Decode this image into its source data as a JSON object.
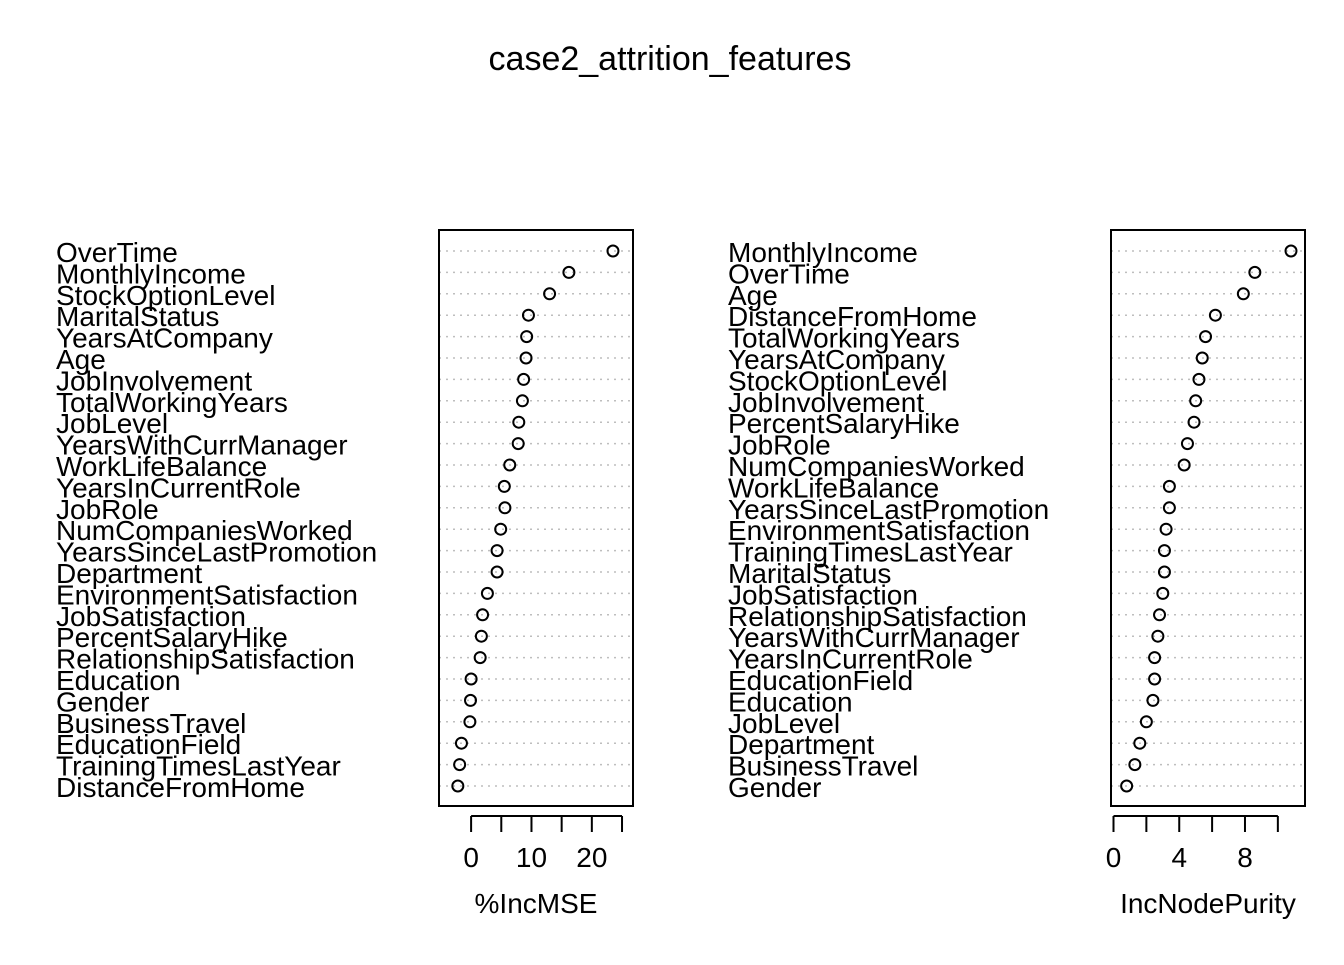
{
  "title": "case2_attrition_features",
  "chart_data": [
    {
      "type": "scatter",
      "xlabel": "%IncMSE",
      "xlim": [
        -3,
        24.5
      ],
      "xticks": [
        0,
        5,
        10,
        15,
        20,
        25
      ],
      "xtick_labels": [
        "0",
        "",
        "10",
        "",
        "20",
        ""
      ],
      "grid": "dotted horizontal",
      "categories": [
        "OverTime",
        "MonthlyIncome",
        "StockOptionLevel",
        "MaritalStatus",
        "YearsAtCompany",
        "Age",
        "JobInvolvement",
        "TotalWorkingYears",
        "JobLevel",
        "YearsWithCurrManager",
        "WorkLifeBalance",
        "YearsInCurrentRole",
        "JobRole",
        "NumCompaniesWorked",
        "YearsSinceLastPromotion",
        "Department",
        "EnvironmentSatisfaction",
        "JobSatisfaction",
        "PercentSalaryHike",
        "RelationshipSatisfaction",
        "Education",
        "Gender",
        "BusinessTravel",
        "EducationField",
        "TrainingTimesLastYear",
        "DistanceFromHome"
      ],
      "values": [
        23.5,
        16.2,
        13.0,
        9.5,
        9.2,
        9.1,
        8.7,
        8.5,
        7.9,
        7.8,
        6.4,
        5.5,
        5.6,
        4.9,
        4.3,
        4.3,
        2.7,
        1.9,
        1.7,
        1.5,
        0.0,
        -0.1,
        -0.2,
        -1.6,
        -1.9,
        -2.2
      ]
    },
    {
      "type": "scatter",
      "xlabel": "IncNodePurity",
      "xlim": [
        0.7,
        10.8
      ],
      "xticks": [
        0,
        2,
        4,
        6,
        8,
        10
      ],
      "xtick_labels": [
        "0",
        "",
        "4",
        "",
        "8",
        ""
      ],
      "grid": "dotted horizontal",
      "categories": [
        "MonthlyIncome",
        "OverTime",
        "Age",
        "DistanceFromHome",
        "TotalWorkingYears",
        "YearsAtCompany",
        "StockOptionLevel",
        "JobInvolvement",
        "PercentSalaryHike",
        "JobRole",
        "NumCompaniesWorked",
        "WorkLifeBalance",
        "YearsSinceLastPromotion",
        "EnvironmentSatisfaction",
        "TrainingTimesLastYear",
        "MaritalStatus",
        "JobSatisfaction",
        "RelationshipSatisfaction",
        "YearsWithCurrManager",
        "YearsInCurrentRole",
        "EducationField",
        "Education",
        "JobLevel",
        "Department",
        "BusinessTravel",
        "Gender"
      ],
      "values": [
        10.8,
        8.6,
        7.9,
        6.2,
        5.6,
        5.4,
        5.2,
        5.0,
        4.9,
        4.5,
        4.3,
        3.4,
        3.4,
        3.2,
        3.1,
        3.1,
        3.0,
        2.8,
        2.7,
        2.5,
        2.5,
        2.4,
        2.0,
        1.6,
        1.3,
        0.8
      ]
    }
  ]
}
